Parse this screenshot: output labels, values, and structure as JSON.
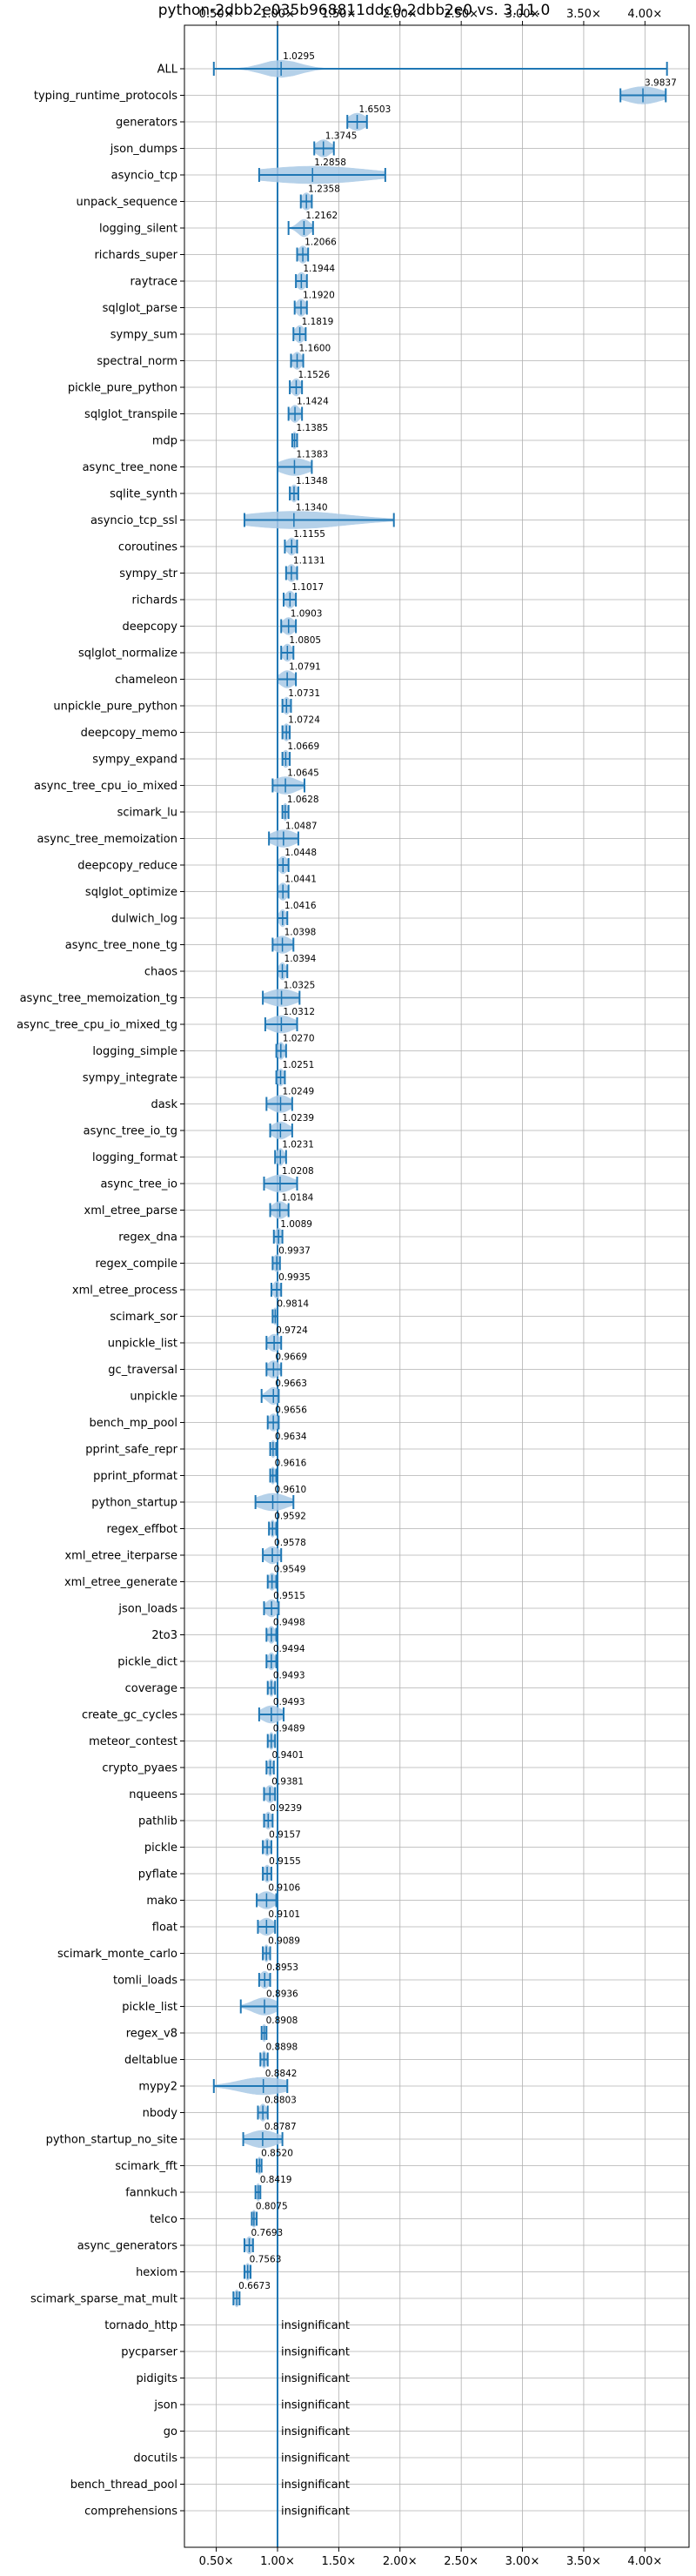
{
  "chart_data": {
    "type": "violin",
    "title": "python-2dbb2e035b968811ddc0-2dbb2e0 vs. 3.11.0",
    "xlabel": "",
    "ylabel": "",
    "xlim": [
      0.24,
      4.36
    ],
    "xticks": [
      0.5,
      1.0,
      1.5,
      2.0,
      2.5,
      3.0,
      3.5,
      4.0
    ],
    "xtick_labels": [
      "0.50×",
      "1.00×",
      "1.50×",
      "2.00×",
      "2.50×",
      "3.00×",
      "3.50×",
      "4.00×"
    ],
    "reference_line": 1.0,
    "grid": true,
    "insignificant_label": "insignificant",
    "rows": [
      {
        "name": "ALL",
        "label": "1.0295",
        "mean": 1.0295,
        "min": 0.48,
        "max": 4.18,
        "spread": 0.15
      },
      {
        "name": "typing_runtime_protocols",
        "label": "3.9837",
        "mean": 3.9837,
        "min": 3.8,
        "max": 4.17,
        "spread": 0.15
      },
      {
        "name": "generators",
        "label": "1.6503",
        "mean": 1.6503,
        "min": 1.57,
        "max": 1.73,
        "spread": 0.07
      },
      {
        "name": "json_dumps",
        "label": "1.3745",
        "mean": 1.3745,
        "min": 1.3,
        "max": 1.46,
        "spread": 0.06
      },
      {
        "name": "asyncio_tcp",
        "label": "1.2858",
        "mean": 1.2858,
        "min": 0.85,
        "max": 1.88,
        "spread": 0.45
      },
      {
        "name": "unpack_sequence",
        "label": "1.2358",
        "mean": 1.2358,
        "min": 1.19,
        "max": 1.28,
        "spread": 0.04
      },
      {
        "name": "logging_silent",
        "label": "1.2162",
        "mean": 1.2162,
        "min": 1.09,
        "max": 1.29,
        "spread": 0.05
      },
      {
        "name": "richards_super",
        "label": "1.2066",
        "mean": 1.2066,
        "min": 1.16,
        "max": 1.25,
        "spread": 0.04
      },
      {
        "name": "raytrace",
        "label": "1.1944",
        "mean": 1.1944,
        "min": 1.15,
        "max": 1.24,
        "spread": 0.04
      },
      {
        "name": "sqlglot_parse",
        "label": "1.1920",
        "mean": 1.192,
        "min": 1.14,
        "max": 1.24,
        "spread": 0.04
      },
      {
        "name": "sympy_sum",
        "label": "1.1819",
        "mean": 1.1819,
        "min": 1.13,
        "max": 1.23,
        "spread": 0.04
      },
      {
        "name": "spectral_norm",
        "label": "1.1600",
        "mean": 1.16,
        "min": 1.11,
        "max": 1.21,
        "spread": 0.04
      },
      {
        "name": "pickle_pure_python",
        "label": "1.1526",
        "mean": 1.1526,
        "min": 1.1,
        "max": 1.2,
        "spread": 0.04
      },
      {
        "name": "sqlglot_transpile",
        "label": "1.1424",
        "mean": 1.1424,
        "min": 1.09,
        "max": 1.2,
        "spread": 0.04
      },
      {
        "name": "mdp",
        "label": "1.1385",
        "mean": 1.1385,
        "min": 1.12,
        "max": 1.16,
        "spread": 0.02
      },
      {
        "name": "async_tree_none",
        "label": "1.1383",
        "mean": 1.1383,
        "min": 1.0,
        "max": 1.28,
        "spread": 0.12
      },
      {
        "name": "sqlite_synth",
        "label": "1.1348",
        "mean": 1.1348,
        "min": 1.1,
        "max": 1.17,
        "spread": 0.03
      },
      {
        "name": "asyncio_tcp_ssl",
        "label": "1.1340",
        "mean": 1.134,
        "min": 0.73,
        "max": 1.95,
        "spread": 0.42
      },
      {
        "name": "coroutines",
        "label": "1.1155",
        "mean": 1.1155,
        "min": 1.06,
        "max": 1.16,
        "spread": 0.04
      },
      {
        "name": "sympy_str",
        "label": "1.1131",
        "mean": 1.1131,
        "min": 1.07,
        "max": 1.16,
        "spread": 0.04
      },
      {
        "name": "richards",
        "label": "1.1017",
        "mean": 1.1017,
        "min": 1.05,
        "max": 1.15,
        "spread": 0.04
      },
      {
        "name": "deepcopy",
        "label": "1.0903",
        "mean": 1.0903,
        "min": 1.03,
        "max": 1.15,
        "spread": 0.05
      },
      {
        "name": "sqlglot_normalize",
        "label": "1.0805",
        "mean": 1.0805,
        "min": 1.03,
        "max": 1.13,
        "spread": 0.04
      },
      {
        "name": "chameleon",
        "label": "1.0791",
        "mean": 1.0791,
        "min": 1.0,
        "max": 1.15,
        "spread": 0.06
      },
      {
        "name": "unpickle_pure_python",
        "label": "1.0731",
        "mean": 1.0731,
        "min": 1.04,
        "max": 1.11,
        "spread": 0.03
      },
      {
        "name": "deepcopy_memo",
        "label": "1.0724",
        "mean": 1.0724,
        "min": 1.04,
        "max": 1.1,
        "spread": 0.03
      },
      {
        "name": "sympy_expand",
        "label": "1.0669",
        "mean": 1.0669,
        "min": 1.04,
        "max": 1.1,
        "spread": 0.03
      },
      {
        "name": "async_tree_cpu_io_mixed",
        "label": "1.0645",
        "mean": 1.0645,
        "min": 0.96,
        "max": 1.22,
        "spread": 0.1
      },
      {
        "name": "scimark_lu",
        "label": "1.0628",
        "mean": 1.0628,
        "min": 1.04,
        "max": 1.09,
        "spread": 0.02
      },
      {
        "name": "async_tree_memoization",
        "label": "1.0487",
        "mean": 1.0487,
        "min": 0.93,
        "max": 1.17,
        "spread": 0.1
      },
      {
        "name": "deepcopy_reduce",
        "label": "1.0448",
        "mean": 1.0448,
        "min": 1.0,
        "max": 1.09,
        "spread": 0.04
      },
      {
        "name": "sqlglot_optimize",
        "label": "1.0441",
        "mean": 1.0441,
        "min": 1.0,
        "max": 1.09,
        "spread": 0.04
      },
      {
        "name": "dulwich_log",
        "label": "1.0416",
        "mean": 1.0416,
        "min": 1.0,
        "max": 1.08,
        "spread": 0.03
      },
      {
        "name": "async_tree_none_tg",
        "label": "1.0398",
        "mean": 1.0398,
        "min": 0.96,
        "max": 1.13,
        "spread": 0.07
      },
      {
        "name": "chaos",
        "label": "1.0394",
        "mean": 1.0394,
        "min": 1.0,
        "max": 1.08,
        "spread": 0.03
      },
      {
        "name": "async_tree_memoization_tg",
        "label": "1.0325",
        "mean": 1.0325,
        "min": 0.88,
        "max": 1.18,
        "spread": 0.12
      },
      {
        "name": "async_tree_cpu_io_mixed_tg",
        "label": "1.0312",
        "mean": 1.0312,
        "min": 0.9,
        "max": 1.16,
        "spread": 0.1
      },
      {
        "name": "logging_simple",
        "label": "1.0270",
        "mean": 1.027,
        "min": 0.99,
        "max": 1.07,
        "spread": 0.03
      },
      {
        "name": "sympy_integrate",
        "label": "1.0251",
        "mean": 1.0251,
        "min": 0.99,
        "max": 1.06,
        "spread": 0.03
      },
      {
        "name": "dask",
        "label": "1.0249",
        "mean": 1.0249,
        "min": 0.91,
        "max": 1.12,
        "spread": 0.08
      },
      {
        "name": "async_tree_io_tg",
        "label": "1.0239",
        "mean": 1.0239,
        "min": 0.94,
        "max": 1.12,
        "spread": 0.07
      },
      {
        "name": "logging_format",
        "label": "1.0231",
        "mean": 1.0231,
        "min": 0.98,
        "max": 1.07,
        "spread": 0.03
      },
      {
        "name": "async_tree_io",
        "label": "1.0208",
        "mean": 1.0208,
        "min": 0.89,
        "max": 1.16,
        "spread": 0.1
      },
      {
        "name": "xml_etree_parse",
        "label": "1.0184",
        "mean": 1.0184,
        "min": 0.94,
        "max": 1.09,
        "spread": 0.06
      },
      {
        "name": "regex_dna",
        "label": "1.0089",
        "mean": 1.0089,
        "min": 0.97,
        "max": 1.04,
        "spread": 0.03
      },
      {
        "name": "regex_compile",
        "label": "0.9937",
        "mean": 0.9937,
        "min": 0.96,
        "max": 1.02,
        "spread": 0.03
      },
      {
        "name": "xml_etree_process",
        "label": "0.9935",
        "mean": 0.9935,
        "min": 0.95,
        "max": 1.03,
        "spread": 0.03
      },
      {
        "name": "scimark_sor",
        "label": "0.9814",
        "mean": 0.9814,
        "min": 0.96,
        "max": 1.0,
        "spread": 0.02
      },
      {
        "name": "unpickle_list",
        "label": "0.9724",
        "mean": 0.9724,
        "min": 0.91,
        "max": 1.03,
        "spread": 0.05
      },
      {
        "name": "gc_traversal",
        "label": "0.9669",
        "mean": 0.9669,
        "min": 0.91,
        "max": 1.03,
        "spread": 0.05
      },
      {
        "name": "unpickle",
        "label": "0.9663",
        "mean": 0.9663,
        "min": 0.87,
        "max": 1.01,
        "spread": 0.05
      },
      {
        "name": "bench_mp_pool",
        "label": "0.9656",
        "mean": 0.9656,
        "min": 0.92,
        "max": 1.01,
        "spread": 0.04
      },
      {
        "name": "pprint_safe_repr",
        "label": "0.9634",
        "mean": 0.9634,
        "min": 0.94,
        "max": 0.99,
        "spread": 0.02
      },
      {
        "name": "pprint_pformat",
        "label": "0.9616",
        "mean": 0.9616,
        "min": 0.94,
        "max": 0.99,
        "spread": 0.02
      },
      {
        "name": "python_startup",
        "label": "0.9610",
        "mean": 0.961,
        "min": 0.82,
        "max": 1.13,
        "spread": 0.12
      },
      {
        "name": "regex_effbot",
        "label": "0.9592",
        "mean": 0.9592,
        "min": 0.93,
        "max": 0.99,
        "spread": 0.02
      },
      {
        "name": "xml_etree_iterparse",
        "label": "0.9578",
        "mean": 0.9578,
        "min": 0.88,
        "max": 1.03,
        "spread": 0.06
      },
      {
        "name": "xml_etree_generate",
        "label": "0.9549",
        "mean": 0.9549,
        "min": 0.92,
        "max": 0.99,
        "spread": 0.03
      },
      {
        "name": "json_loads",
        "label": "0.9515",
        "mean": 0.9515,
        "min": 0.89,
        "max": 1.01,
        "spread": 0.05
      },
      {
        "name": "2to3",
        "label": "0.9498",
        "mean": 0.9498,
        "min": 0.91,
        "max": 0.99,
        "spread": 0.03
      },
      {
        "name": "pickle_dict",
        "label": "0.9494",
        "mean": 0.9494,
        "min": 0.91,
        "max": 0.99,
        "spread": 0.03
      },
      {
        "name": "coverage",
        "label": "0.9493",
        "mean": 0.9493,
        "min": 0.92,
        "max": 0.98,
        "spread": 0.02
      },
      {
        "name": "create_gc_cycles",
        "label": "0.9493",
        "mean": 0.9493,
        "min": 0.85,
        "max": 1.05,
        "spread": 0.08
      },
      {
        "name": "meteor_contest",
        "label": "0.9489",
        "mean": 0.9489,
        "min": 0.92,
        "max": 0.98,
        "spread": 0.02
      },
      {
        "name": "crypto_pyaes",
        "label": "0.9401",
        "mean": 0.9401,
        "min": 0.91,
        "max": 0.97,
        "spread": 0.02
      },
      {
        "name": "nqueens",
        "label": "0.9381",
        "mean": 0.9381,
        "min": 0.89,
        "max": 0.98,
        "spread": 0.04
      },
      {
        "name": "pathlib",
        "label": "0.9239",
        "mean": 0.9239,
        "min": 0.89,
        "max": 0.96,
        "spread": 0.03
      },
      {
        "name": "pickle",
        "label": "0.9157",
        "mean": 0.9157,
        "min": 0.88,
        "max": 0.95,
        "spread": 0.03
      },
      {
        "name": "pyflate",
        "label": "0.9155",
        "mean": 0.9155,
        "min": 0.88,
        "max": 0.95,
        "spread": 0.03
      },
      {
        "name": "mako",
        "label": "0.9106",
        "mean": 0.9106,
        "min": 0.83,
        "max": 0.99,
        "spread": 0.07
      },
      {
        "name": "float",
        "label": "0.9101",
        "mean": 0.9101,
        "min": 0.84,
        "max": 0.98,
        "spread": 0.06
      },
      {
        "name": "scimark_monte_carlo",
        "label": "0.9089",
        "mean": 0.9089,
        "min": 0.88,
        "max": 0.94,
        "spread": 0.02
      },
      {
        "name": "tomli_loads",
        "label": "0.8953",
        "mean": 0.8953,
        "min": 0.85,
        "max": 0.94,
        "spread": 0.04
      },
      {
        "name": "pickle_list",
        "label": "0.8936",
        "mean": 0.8936,
        "min": 0.7,
        "max": 1.0,
        "spread": 0.1
      },
      {
        "name": "regex_v8",
        "label": "0.8908",
        "mean": 0.8908,
        "min": 0.87,
        "max": 0.91,
        "spread": 0.02
      },
      {
        "name": "deltablue",
        "label": "0.8898",
        "mean": 0.8898,
        "min": 0.86,
        "max": 0.92,
        "spread": 0.02
      },
      {
        "name": "mypy2",
        "label": "0.8842",
        "mean": 0.8842,
        "min": 0.48,
        "max": 1.08,
        "spread": 0.2
      },
      {
        "name": "nbody",
        "label": "0.8803",
        "mean": 0.8803,
        "min": 0.84,
        "max": 0.92,
        "spread": 0.03
      },
      {
        "name": "python_startup_no_site",
        "label": "0.8787",
        "mean": 0.8787,
        "min": 0.72,
        "max": 1.04,
        "spread": 0.12
      },
      {
        "name": "scimark_fft",
        "label": "0.8520",
        "mean": 0.852,
        "min": 0.83,
        "max": 0.87,
        "spread": 0.02
      },
      {
        "name": "fannkuch",
        "label": "0.8419",
        "mean": 0.8419,
        "min": 0.82,
        "max": 0.86,
        "spread": 0.02
      },
      {
        "name": "telco",
        "label": "0.8075",
        "mean": 0.8075,
        "min": 0.79,
        "max": 0.83,
        "spread": 0.02
      },
      {
        "name": "async_generators",
        "label": "0.7693",
        "mean": 0.7693,
        "min": 0.73,
        "max": 0.8,
        "spread": 0.03
      },
      {
        "name": "hexiom",
        "label": "0.7563",
        "mean": 0.7563,
        "min": 0.73,
        "max": 0.78,
        "spread": 0.02
      },
      {
        "name": "scimark_sparse_mat_mult",
        "label": "0.6673",
        "mean": 0.6673,
        "min": 0.64,
        "max": 0.69,
        "spread": 0.02
      },
      {
        "name": "tornado_http",
        "insignificant": true
      },
      {
        "name": "pycparser",
        "insignificant": true
      },
      {
        "name": "pidigits",
        "insignificant": true
      },
      {
        "name": "json",
        "insignificant": true
      },
      {
        "name": "go",
        "insignificant": true
      },
      {
        "name": "docutils",
        "insignificant": true
      },
      {
        "name": "bench_thread_pool",
        "insignificant": true
      },
      {
        "name": "comprehensions",
        "insignificant": true
      }
    ],
    "colors": {
      "body": "#1f77b4",
      "body_fill": "#a9c9e6",
      "reference": "#1f77b4",
      "grid": "#b0b0b0",
      "axis": "#000000"
    }
  }
}
